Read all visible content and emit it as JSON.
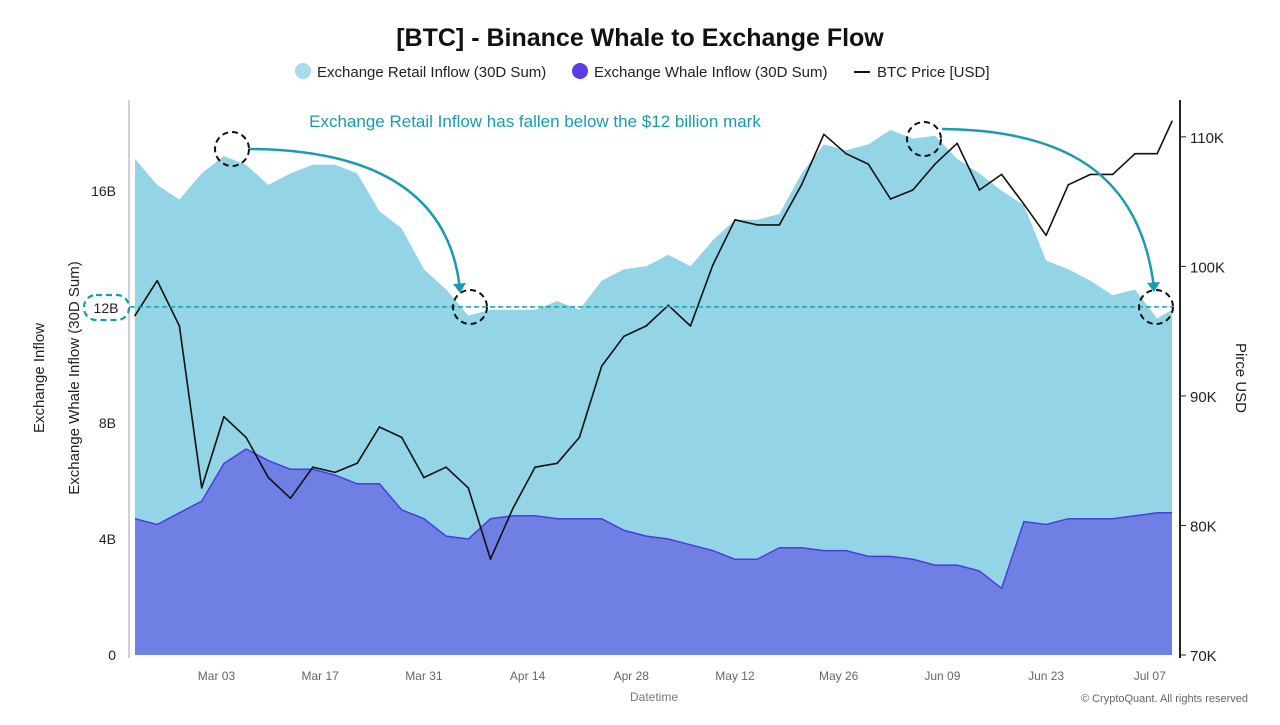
{
  "chart_data": {
    "type": "area",
    "title": "[BTC] - Binance Whale to Exchange Flow",
    "xlabel": "Datetime",
    "ylabel_left_outer": "Exchange Inflow",
    "ylabel_left_inner": "Exchange Whale Inflow (30D Sum)",
    "ylabel_right": "Pirce USD",
    "y_left_ticks": [
      "0",
      "4B",
      "8B",
      "12B",
      "16B"
    ],
    "y_left_tick_values": [
      0,
      4,
      8,
      12,
      16
    ],
    "y_left_range": [
      0,
      19.2
    ],
    "y_right_ticks": [
      "70K",
      "80K",
      "90K",
      "100K",
      "110K"
    ],
    "y_right_tick_values": [
      70,
      80,
      90,
      100,
      110
    ],
    "y_right_range": [
      70,
      113
    ],
    "x_ticks": [
      "Mar 03",
      "Mar 17",
      "Mar 31",
      "Apr 14",
      "Apr 28",
      "May 12",
      "May 26",
      "Jun 09",
      "Jun 23",
      "Jul 07"
    ],
    "x_tick_dates": [
      "2025-03-03",
      "2025-03-17",
      "2025-03-31",
      "2025-04-14",
      "2025-04-28",
      "2025-05-12",
      "2025-05-26",
      "2025-06-09",
      "2025-06-23",
      "2025-07-07"
    ],
    "x_range": [
      "2025-02-20",
      "2025-07-10"
    ],
    "grid": false,
    "legend_position": "top",
    "colors": {
      "retail": "#93d4e6",
      "whale": "#6f7fe3",
      "whale_line": "#4a3de0",
      "whale_legend": "#5b3de6",
      "retail_legend": "#a8dcec",
      "price": "#111111",
      "annotation": "#1a9bb0"
    },
    "x": [
      "2025-02-20",
      "2025-02-23",
      "2025-02-26",
      "2025-03-01",
      "2025-03-04",
      "2025-03-07",
      "2025-03-10",
      "2025-03-13",
      "2025-03-16",
      "2025-03-19",
      "2025-03-22",
      "2025-03-25",
      "2025-03-28",
      "2025-03-31",
      "2025-04-03",
      "2025-04-06",
      "2025-04-09",
      "2025-04-12",
      "2025-04-15",
      "2025-04-18",
      "2025-04-21",
      "2025-04-24",
      "2025-04-27",
      "2025-04-30",
      "2025-05-03",
      "2025-05-06",
      "2025-05-09",
      "2025-05-12",
      "2025-05-15",
      "2025-05-18",
      "2025-05-21",
      "2025-05-24",
      "2025-05-27",
      "2025-05-30",
      "2025-06-02",
      "2025-06-05",
      "2025-06-08",
      "2025-06-11",
      "2025-06-14",
      "2025-06-17",
      "2025-06-20",
      "2025-06-23",
      "2025-06-26",
      "2025-06-29",
      "2025-07-02",
      "2025-07-05",
      "2025-07-08",
      "2025-07-10"
    ],
    "series": [
      {
        "name": "Exchange Retail Inflow (30D Sum)",
        "axis": "left",
        "unit": "B",
        "values": [
          17.1,
          16.2,
          15.7,
          16.6,
          17.2,
          16.9,
          16.2,
          16.6,
          16.9,
          16.9,
          16.6,
          15.3,
          14.7,
          13.3,
          12.6,
          11.7,
          11.9,
          11.9,
          11.9,
          12.2,
          11.9,
          12.9,
          13.3,
          13.4,
          13.8,
          13.4,
          14.3,
          15.0,
          15.0,
          15.2,
          16.6,
          17.6,
          17.4,
          17.6,
          18.1,
          17.8,
          17.9,
          17.1,
          16.6,
          16.0,
          15.5,
          13.6,
          13.3,
          12.9,
          12.4,
          12.6,
          11.6,
          11.9
        ]
      },
      {
        "name": "Exchange Whale Inflow (30D Sum)",
        "axis": "left",
        "unit": "B",
        "values": [
          4.7,
          4.5,
          4.9,
          5.3,
          6.6,
          7.1,
          6.7,
          6.4,
          6.4,
          6.2,
          5.9,
          5.9,
          5.0,
          4.7,
          4.1,
          4.0,
          4.7,
          4.8,
          4.8,
          4.7,
          4.7,
          4.7,
          4.3,
          4.1,
          4.0,
          3.8,
          3.6,
          3.3,
          3.3,
          3.7,
          3.7,
          3.6,
          3.6,
          3.4,
          3.4,
          3.3,
          3.1,
          3.1,
          2.9,
          2.3,
          4.6,
          4.5,
          4.7,
          4.7,
          4.7,
          4.8,
          4.9,
          4.9
        ]
      },
      {
        "name": "BTC Price [USD]",
        "axis": "right",
        "unit": "K",
        "values": [
          96.2,
          98.9,
          95.4,
          82.9,
          88.4,
          86.8,
          83.7,
          82.1,
          84.5,
          84.1,
          84.8,
          87.6,
          86.8,
          83.7,
          84.5,
          82.9,
          77.4,
          81.3,
          84.5,
          84.8,
          86.8,
          92.3,
          94.6,
          95.4,
          97.0,
          95.4,
          100.1,
          103.6,
          103.2,
          103.2,
          106.3,
          110.2,
          108.7,
          107.9,
          105.2,
          105.9,
          107.9,
          109.5,
          105.9,
          107.1,
          104.8,
          102.4,
          106.3,
          107.1,
          107.1,
          108.7,
          108.7,
          111.2
        ]
      }
    ],
    "annotations": {
      "headline": "Exchange Retail Inflow has fallen below the $12 billion mark",
      "reference_line_label": "12B",
      "reference_line_value": 12
    }
  },
  "legend": [
    {
      "label": "Exchange Retail Inflow (30D Sum)"
    },
    {
      "label": "Exchange Whale Inflow (30D Sum)"
    },
    {
      "label": "BTC Price [USD]"
    }
  ],
  "footer": {
    "copyright": "© CryptoQuant. All rights reserved"
  }
}
